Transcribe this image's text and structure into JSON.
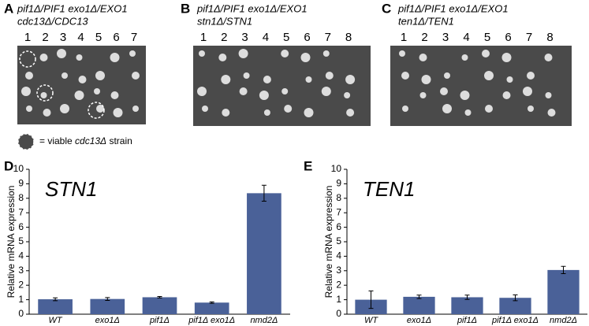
{
  "panels": [
    {
      "letter": "A",
      "genotype": [
        "pif1Δ/PIF1 exo1Δ/EXO1",
        "cdc13Δ/CDC13"
      ],
      "columns": [
        "1",
        "2",
        "3",
        "4",
        "5",
        "6",
        "7"
      ]
    },
    {
      "letter": "B",
      "genotype": [
        "pif1Δ/PIF1 exo1Δ/EXO1",
        "stn1Δ/STN1"
      ],
      "columns": [
        "1",
        "2",
        "3",
        "4",
        "5",
        "6",
        "7",
        "8"
      ]
    },
    {
      "letter": "C",
      "genotype": [
        "pif1Δ/PIF1 exo1Δ/EXO1",
        "ten1Δ/TEN1"
      ],
      "columns": [
        "1",
        "2",
        "3",
        "4",
        "5",
        "6",
        "7",
        "8"
      ]
    }
  ],
  "key": [
    "= viable ",
    "cdc13Δ",
    " strain"
  ],
  "chart_data": [
    {
      "type": "bar",
      "letter": "D",
      "title": "STN1",
      "y_label": "Relative mRNA expression",
      "categories": [
        "WT",
        "exo1Δ",
        "pif1Δ",
        "pif1Δ exo1Δ",
        "nmd2Δ"
      ],
      "values": [
        1.03,
        1.05,
        1.17,
        0.8,
        8.35
      ],
      "errors": [
        0.1,
        0.1,
        0.05,
        0.05,
        0.55
      ],
      "color": "#4a6198",
      "ylim": [
        0,
        10
      ],
      "yticks": [
        0,
        1,
        2,
        3,
        4,
        5,
        6,
        7,
        8,
        9,
        10
      ]
    },
    {
      "type": "bar",
      "letter": "E",
      "title": "TEN1",
      "y_label": "Relative mRNA expression",
      "categories": [
        "WT",
        "exo1Δ",
        "pif1Δ",
        "pif1Δ exo1Δ",
        "nmd2Δ"
      ],
      "values": [
        1.0,
        1.2,
        1.17,
        1.13,
        3.05
      ],
      "errors": [
        0.6,
        0.12,
        0.15,
        0.2,
        0.25
      ],
      "color": "#4a6198",
      "ylim": [
        0,
        10
      ],
      "yticks": [
        0,
        1,
        2,
        3,
        4,
        5,
        6,
        7,
        8,
        9,
        10
      ]
    }
  ]
}
